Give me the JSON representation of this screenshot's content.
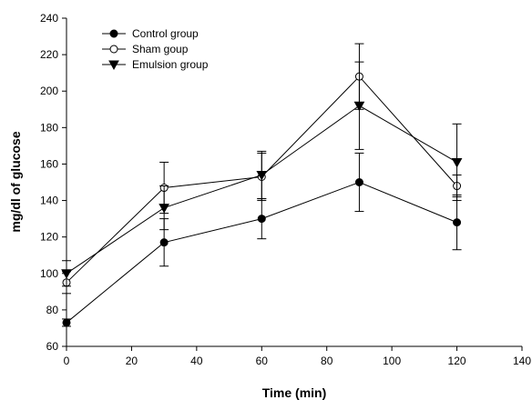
{
  "chart_data": {
    "type": "line",
    "title": "",
    "xlabel": "Time (min)",
    "ylabel": "mg/dl of glucose",
    "xlim": [
      0,
      140
    ],
    "ylim": [
      60,
      240
    ],
    "xticks": [
      0,
      20,
      40,
      60,
      80,
      100,
      120,
      140
    ],
    "yticks": [
      60,
      80,
      100,
      120,
      140,
      160,
      180,
      200,
      220,
      240
    ],
    "grid": false,
    "legend_position": "top-left",
    "x": [
      0,
      30,
      60,
      90,
      120
    ],
    "series": [
      {
        "name": "Control group",
        "marker": "filled-circle",
        "color": "#000000",
        "values": [
          73,
          117,
          130,
          150,
          128
        ],
        "errors": [
          2,
          13,
          11,
          16,
          15
        ]
      },
      {
        "name": "Sham goup",
        "marker": "open-circle",
        "color": "#000000",
        "values": [
          95,
          147,
          153,
          208,
          148
        ],
        "errors": [
          6,
          14,
          13,
          18,
          6
        ]
      },
      {
        "name": "Emulsion group",
        "marker": "filled-triangle-down",
        "color": "#000000",
        "values": [
          100,
          136,
          154,
          192,
          161
        ],
        "errors": [
          7,
          12,
          13,
          24,
          21
        ]
      }
    ]
  }
}
